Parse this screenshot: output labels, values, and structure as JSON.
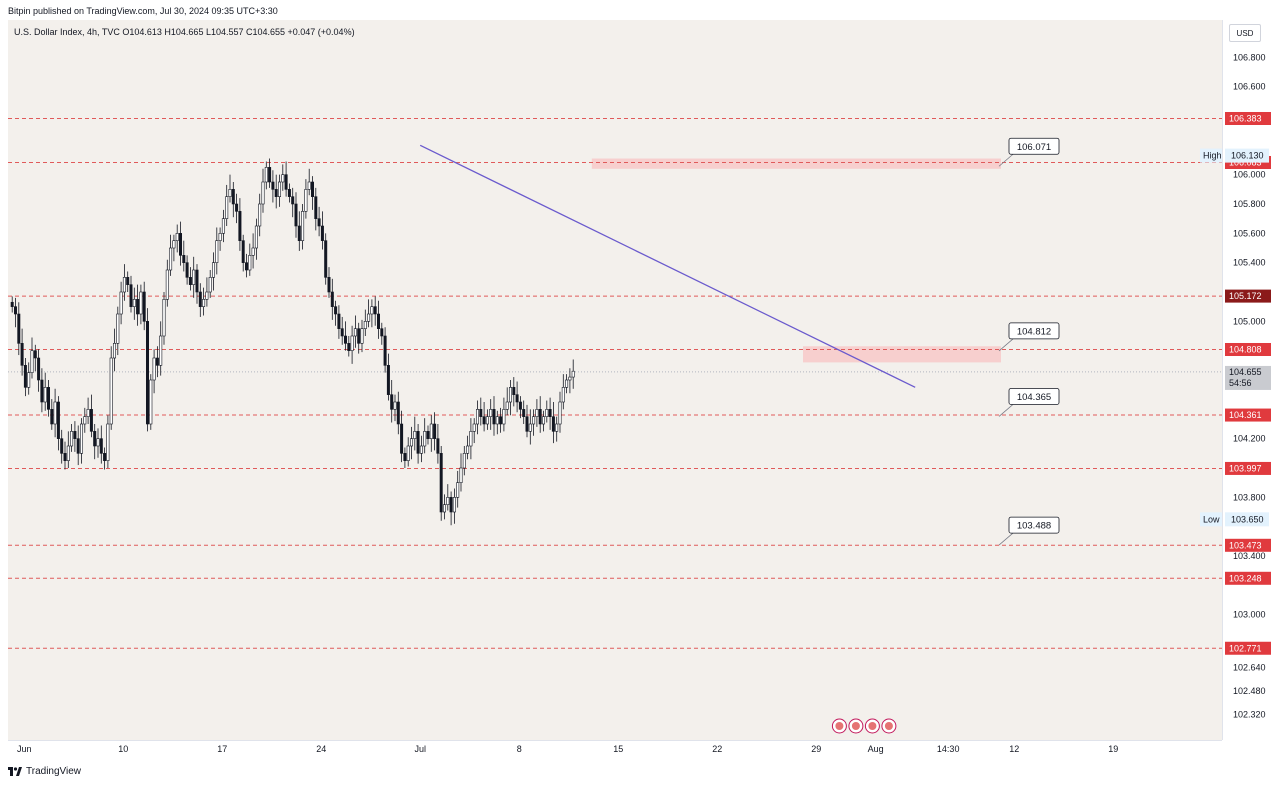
{
  "header": {
    "published": "Bitpin published on TradingView.com, Jul 30, 2024 09:35 UTC+3:30",
    "legend": "U.S. Dollar Index, 4h, TVC  O104.613  H104.665  L104.557  C104.655  +0.047 (+0.04%)"
  },
  "currency_button": "USD",
  "footer": {
    "brand": "TradingView"
  },
  "colors": {
    "background": "#f3f0ec",
    "level_line": "#e05a5a",
    "trendline": "#6a5acd",
    "zone": "#f8c4c4",
    "label_red": "#e03a3e",
    "label_dark": "#8b1a1a"
  },
  "price_ticks": [
    "106.800",
    "106.600",
    "106.000",
    "105.800",
    "105.600",
    "105.400",
    "105.000",
    "104.200",
    "103.800",
    "103.400",
    "103.000",
    "102.640",
    "102.480",
    "102.320"
  ],
  "time_ticks": [
    {
      "label": "Jun",
      "i": 4
    },
    {
      "label": "10",
      "i": 34
    },
    {
      "label": "17",
      "i": 64
    },
    {
      "label": "24",
      "i": 94
    },
    {
      "label": "Jul",
      "i": 124
    },
    {
      "label": "8",
      "i": 154
    },
    {
      "label": "15",
      "i": 184
    },
    {
      "label": "22",
      "i": 214
    },
    {
      "label": "29",
      "i": 244
    },
    {
      "label": "Aug",
      "i": 262
    },
    {
      "label": "14:30",
      "i": 284
    },
    {
      "label": "12",
      "i": 304
    },
    {
      "label": "19",
      "i": 334
    }
  ],
  "levels": [
    {
      "price": 106.383,
      "label": "106.383",
      "style": "red"
    },
    {
      "price": 106.083,
      "label": "106.083",
      "style": "red"
    },
    {
      "price": 105.172,
      "label": "105.172",
      "style": "dark"
    },
    {
      "price": 104.808,
      "label": "104.808",
      "style": "red"
    },
    {
      "price": 104.361,
      "label": "104.361",
      "style": "red"
    },
    {
      "price": 103.997,
      "label": "103.997",
      "style": "red"
    },
    {
      "price": 103.473,
      "label": "103.473",
      "style": "red"
    },
    {
      "price": 103.248,
      "label": "103.248",
      "style": "red"
    },
    {
      "price": 102.771,
      "label": "102.771",
      "style": "red"
    }
  ],
  "zones": [
    {
      "i0": 176,
      "i1": 300,
      "p0": 106.04,
      "p1": 106.11
    },
    {
      "i0": 240,
      "i1": 300,
      "p0": 104.72,
      "p1": 104.83
    }
  ],
  "callouts": [
    {
      "label": "106.071",
      "i": 300,
      "price": 106.071
    },
    {
      "label": "104.812",
      "i": 300,
      "price": 104.812
    },
    {
      "label": "104.365",
      "i": 300,
      "price": 104.365
    },
    {
      "label": "103.488",
      "i": 300,
      "price": 103.488
    }
  ],
  "trendline": {
    "i0": 124,
    "p0": 106.2,
    "i1": 274,
    "p1": 104.55
  },
  "high_marker": {
    "label": "High",
    "value": "106.130",
    "price": 106.13
  },
  "low_marker": {
    "label": "Low",
    "value": "103.650",
    "price": 103.65
  },
  "current_price": {
    "value": "104.655",
    "countdown": "54:56",
    "price": 104.655
  },
  "chart_data": {
    "type": "candlestick",
    "symbol": "U.S. Dollar Index",
    "interval": "4h",
    "ylim": [
      102.2,
      107.0
    ],
    "y_scale": "linear",
    "candle_index_note": "6 candles per day; index 0 = start of visible range",
    "closes": [
      105.1,
      105.05,
      104.85,
      104.7,
      104.55,
      104.65,
      104.8,
      104.75,
      104.6,
      104.45,
      104.55,
      104.4,
      104.3,
      104.45,
      104.2,
      104.1,
      104.05,
      104.15,
      104.25,
      104.2,
      104.1,
      104.3,
      104.35,
      104.4,
      104.25,
      104.15,
      104.2,
      104.1,
      104.05,
      104.3,
      104.75,
      104.85,
      105.05,
      105.2,
      105.3,
      105.25,
      105.1,
      105.15,
      105.05,
      105.2,
      105.0,
      104.3,
      104.6,
      104.75,
      104.7,
      104.9,
      105.15,
      105.35,
      105.5,
      105.55,
      105.6,
      105.45,
      105.4,
      105.3,
      105.25,
      105.35,
      105.2,
      105.1,
      105.15,
      105.2,
      105.3,
      105.4,
      105.55,
      105.6,
      105.7,
      105.85,
      105.9,
      105.8,
      105.75,
      105.55,
      105.4,
      105.35,
      105.45,
      105.5,
      105.65,
      105.8,
      105.95,
      106.05,
      105.95,
      105.9,
      105.85,
      105.95,
      106.0,
      105.9,
      105.85,
      105.8,
      105.65,
      105.55,
      105.75,
      105.9,
      105.95,
      105.85,
      105.7,
      105.65,
      105.55,
      105.3,
      105.2,
      105.1,
      105.05,
      104.95,
      104.9,
      104.85,
      104.8,
      104.9,
      104.95,
      104.85,
      104.95,
      105.0,
      105.05,
      105.1,
      105.05,
      104.95,
      104.9,
      104.7,
      104.5,
      104.4,
      104.45,
      104.3,
      104.1,
      104.05,
      104.15,
      104.2,
      104.25,
      104.1,
      104.15,
      104.25,
      104.2,
      104.3,
      104.2,
      104.1,
      103.7,
      103.75,
      103.8,
      103.7,
      103.8,
      103.9,
      104.0,
      104.1,
      104.15,
      104.25,
      104.3,
      104.4,
      104.35,
      104.3,
      104.35,
      104.4,
      104.3,
      104.35,
      104.3,
      104.4,
      104.45,
      104.55,
      104.5,
      104.45,
      104.4,
      104.35,
      104.25,
      104.3,
      104.35,
      104.4,
      104.3,
      104.35,
      104.4,
      104.35,
      104.25,
      104.3,
      104.45,
      104.55,
      104.6,
      104.62,
      104.66
    ]
  }
}
